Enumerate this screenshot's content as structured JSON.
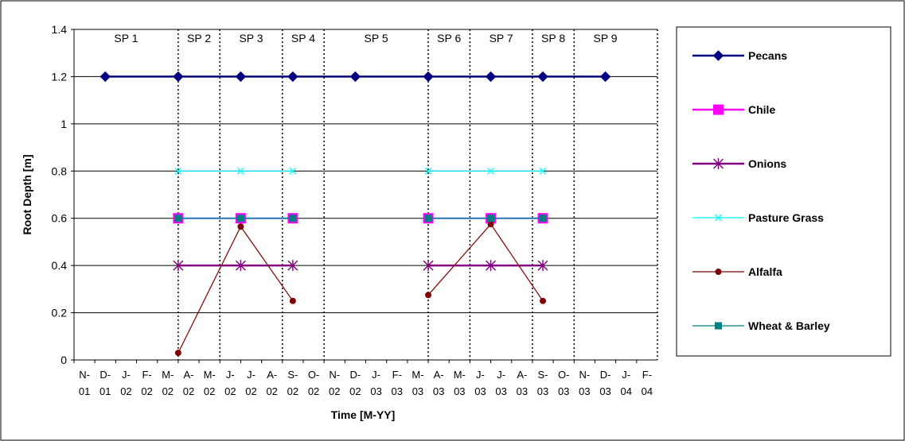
{
  "chart_data": {
    "type": "line",
    "title": "",
    "xlabel": "Time [M-YY]",
    "ylabel": "Root Depth [m]",
    "ylim": [
      0,
      1.4
    ],
    "yticks": [
      "0",
      "0.2",
      "0.4",
      "0.6",
      "0.8",
      "1",
      "1.2",
      "1.4"
    ],
    "grid": "horizontal",
    "legend_position": "right",
    "categories": [
      [
        "N-",
        "01"
      ],
      [
        "D-",
        "01"
      ],
      [
        "J-",
        "02"
      ],
      [
        "F-",
        "02"
      ],
      [
        "M-",
        "02"
      ],
      [
        "A-",
        "02"
      ],
      [
        "M-",
        "02"
      ],
      [
        "J-",
        "02"
      ],
      [
        "J-",
        "02"
      ],
      [
        "A-",
        "02"
      ],
      [
        "S-",
        "02"
      ],
      [
        "O-",
        "02"
      ],
      [
        "N-",
        "02"
      ],
      [
        "D-",
        "02"
      ],
      [
        "J-",
        "03"
      ],
      [
        "F-",
        "03"
      ],
      [
        "M-",
        "03"
      ],
      [
        "A-",
        "03"
      ],
      [
        "M-",
        "03"
      ],
      [
        "J-",
        "03"
      ],
      [
        "J-",
        "03"
      ],
      [
        "A-",
        "03"
      ],
      [
        "S-",
        "03"
      ],
      [
        "O-",
        "03"
      ],
      [
        "N-",
        "03"
      ],
      [
        "D-",
        "03"
      ],
      [
        "J-",
        "04"
      ],
      [
        "F-",
        "04"
      ]
    ],
    "stress_periods": [
      {
        "label": "SP 1",
        "start_month": 0,
        "end_month": 5
      },
      {
        "label": "SP 2",
        "start_month": 5,
        "end_month": 7
      },
      {
        "label": "SP 3",
        "start_month": 7,
        "end_month": 10
      },
      {
        "label": "SP 4",
        "start_month": 10,
        "end_month": 12
      },
      {
        "label": "SP 5",
        "start_month": 12,
        "end_month": 17
      },
      {
        "label": "SP 6",
        "start_month": 17,
        "end_month": 19
      },
      {
        "label": "SP 7",
        "start_month": 19,
        "end_month": 22
      },
      {
        "label": "SP 8",
        "start_month": 22,
        "end_month": 24
      },
      {
        "label": "SP 9",
        "start_month": 24,
        "end_month": 27
      }
    ],
    "series": [
      {
        "name": "Pecans",
        "color": "#000080",
        "marker": "diamond",
        "points": [
          [
            1.5,
            1.2
          ],
          [
            5,
            1.2
          ],
          [
            8,
            1.2
          ],
          [
            10.5,
            1.2
          ],
          [
            13.5,
            1.2
          ],
          [
            17,
            1.2
          ],
          [
            20,
            1.2
          ],
          [
            22.5,
            1.2
          ],
          [
            25.5,
            1.2
          ]
        ]
      },
      {
        "name": "Chile",
        "color": "#FF00FF",
        "marker": "square",
        "points": [
          [
            5,
            0.6
          ],
          [
            8,
            0.6
          ],
          [
            10.5,
            0.6
          ],
          null,
          [
            17,
            0.6
          ],
          [
            20,
            0.6
          ],
          [
            22.5,
            0.6
          ]
        ]
      },
      {
        "name": "Onions",
        "color": "#800080",
        "marker": "asterisk",
        "points": [
          [
            5,
            0.4
          ],
          [
            8,
            0.4
          ],
          [
            10.5,
            0.4
          ],
          null,
          [
            17,
            0.4
          ],
          [
            20,
            0.4
          ],
          [
            22.5,
            0.4
          ]
        ]
      },
      {
        "name": "Pasture Grass",
        "color": "#00FFFF",
        "marker": "x",
        "points": [
          [
            5,
            0.8
          ],
          [
            8,
            0.8
          ],
          [
            10.5,
            0.8
          ],
          null,
          [
            17,
            0.8
          ],
          [
            20,
            0.8
          ],
          [
            22.5,
            0.8
          ]
        ]
      },
      {
        "name": "Alfalfa",
        "color": "#800000",
        "marker": "circle",
        "points": [
          [
            5,
            0.03
          ],
          [
            8,
            0.565
          ],
          [
            10.5,
            0.25
          ],
          null,
          [
            17,
            0.275
          ],
          [
            20,
            0.575
          ],
          [
            22.5,
            0.25
          ]
        ]
      },
      {
        "name": "Wheat &  Barley",
        "color": "#008080",
        "marker": "small-square",
        "points": [
          [
            5,
            0.6
          ],
          [
            8,
            0.6
          ],
          [
            10.5,
            0.6
          ],
          null,
          [
            17,
            0.6
          ],
          [
            20,
            0.6
          ],
          [
            22.5,
            0.6
          ]
        ]
      }
    ]
  }
}
